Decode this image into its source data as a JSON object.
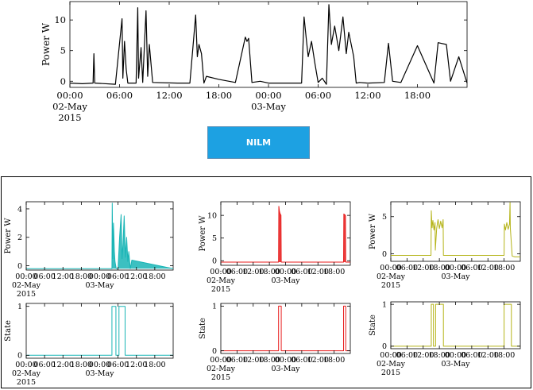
{
  "button": {
    "label": "NILM"
  },
  "chart_data": [
    {
      "id": "aggregate",
      "type": "line",
      "color": "#000000",
      "ylabel": "Power W",
      "ylim": [
        -1,
        13
      ],
      "yticks": [
        0,
        5,
        10
      ],
      "xlim": [
        0,
        48
      ],
      "xticks": [
        {
          "x": 0,
          "label": "00:00",
          "sub": [
            "02-May",
            "2015"
          ]
        },
        {
          "x": 6,
          "label": "06:00"
        },
        {
          "x": 12,
          "label": "12:00"
        },
        {
          "x": 18,
          "label": "18:00"
        },
        {
          "x": 24,
          "label": "00:00",
          "sub": [
            "03-May"
          ]
        },
        {
          "x": 30,
          "label": "06:00"
        },
        {
          "x": 36,
          "label": "12:00"
        },
        {
          "x": 42,
          "label": "18:00"
        }
      ],
      "x": [
        0,
        1.5,
        2.8,
        2.9,
        3.0,
        5.5,
        6.3,
        6.4,
        6.6,
        6.8,
        7.0,
        8.0,
        8.2,
        8.3,
        8.6,
        8.8,
        9.2,
        9.4,
        9.6,
        10.0,
        13.0,
        14.5,
        15.2,
        15.4,
        15.6,
        15.9,
        16.2,
        16.5,
        18.0,
        20.0,
        21.2,
        21.4,
        21.6,
        22.0,
        23.0,
        24.0,
        26.0,
        28.0,
        28.3,
        28.6,
        28.8,
        29.2,
        29.6,
        30.0,
        30.5,
        31.0,
        31.3,
        31.6,
        32.0,
        32.5,
        33.0,
        33.4,
        33.7,
        34.0,
        34.3,
        34.6,
        35.0,
        36.0,
        38.0,
        38.5,
        39.0,
        40.0,
        42.0,
        44.0,
        44.5,
        45.5,
        46.0,
        47.0,
        48.0
      ],
      "y": [
        -0.3,
        -0.4,
        -0.3,
        4.5,
        -0.3,
        -0.5,
        10.2,
        0.5,
        6.5,
        2.0,
        -0.3,
        -0.3,
        12.0,
        0.5,
        5.5,
        -0.2,
        11.5,
        0.8,
        6.0,
        -0.2,
        -0.3,
        -0.3,
        10.8,
        4.0,
        6.0,
        4.5,
        -0.3,
        0.8,
        0.3,
        -0.2,
        7.2,
        6.5,
        7.0,
        -0.2,
        0.0,
        -0.3,
        -0.3,
        -0.3,
        10.5,
        6.5,
        4.0,
        6.5,
        3.0,
        -0.2,
        0.5,
        -0.5,
        12.5,
        6.0,
        9.0,
        5.0,
        10.5,
        4.5,
        8.0,
        6.0,
        4.0,
        -0.3,
        -0.2,
        -0.3,
        -0.2,
        6.2,
        0.0,
        -0.2,
        5.8,
        -0.3,
        6.3,
        6.0,
        0.0,
        4.0,
        -0.3
      ]
    },
    {
      "id": "app1-power",
      "type": "area",
      "color": "#1ab5b6",
      "ylabel": "Power W",
      "ylim": [
        -0.3,
        4.5
      ],
      "yticks": [
        0,
        2,
        4
      ],
      "xlim": [
        0,
        48
      ],
      "xticks": [
        {
          "x": 0,
          "label": "00:00",
          "sub": [
            "02-May",
            "2015"
          ]
        },
        {
          "x": 6,
          "label": "06:00"
        },
        {
          "x": 12,
          "label": "12:00"
        },
        {
          "x": 18,
          "label": "18:00"
        },
        {
          "x": 24,
          "label": "00:00",
          "sub": [
            "03-May"
          ]
        },
        {
          "x": 30,
          "label": "06:00"
        },
        {
          "x": 36,
          "label": "12:00"
        },
        {
          "x": 42,
          "label": "18:00"
        }
      ],
      "x": [
        0,
        28.0,
        28.1,
        28.3,
        28.5,
        28.8,
        29.0,
        29.4,
        29.8,
        30.0,
        30.5,
        31.0,
        31.3,
        31.6,
        32.0,
        32.4,
        32.8,
        33.2,
        33.5,
        34.0,
        34.5,
        48
      ],
      "y": [
        -0.2,
        -0.2,
        4.4,
        0.5,
        3.0,
        1.0,
        0.3,
        -0.2,
        -0.2,
        -0.2,
        2.0,
        3.6,
        0.5,
        1.5,
        3.5,
        0.6,
        2.0,
        0.3,
        1.0,
        -0.2,
        0.4,
        -0.2
      ]
    },
    {
      "id": "app2-power",
      "type": "area",
      "color": "#e81e1e",
      "ylabel": "Power W",
      "ylim": [
        -1,
        13
      ],
      "yticks": [
        0,
        5,
        10
      ],
      "xlim": [
        0,
        48
      ],
      "xticks": [
        {
          "x": 0,
          "label": "00:00",
          "sub": [
            "02-May",
            "2015"
          ]
        },
        {
          "x": 6,
          "label": "06:00"
        },
        {
          "x": 12,
          "label": "12:00"
        },
        {
          "x": 18,
          "label": "18:00"
        },
        {
          "x": 24,
          "label": "00:00",
          "sub": [
            "03-May"
          ]
        },
        {
          "x": 30,
          "label": "06:00"
        },
        {
          "x": 36,
          "label": "12:00"
        },
        {
          "x": 42,
          "label": "18:00"
        }
      ],
      "x": [
        0,
        21.4,
        21.5,
        21.7,
        21.9,
        22.3,
        22.4,
        45.5,
        45.6,
        46.2,
        46.3,
        48
      ],
      "y": [
        -0.3,
        -0.3,
        12.0,
        11.0,
        10.5,
        10.0,
        -0.3,
        -0.3,
        10.3,
        10.0,
        -0.3,
        -0.3
      ]
    },
    {
      "id": "app3-power",
      "type": "line",
      "color": "#b5b419",
      "ylabel": "Power W",
      "ylim": [
        -1,
        7
      ],
      "yticks": [
        0,
        5
      ],
      "xlim": [
        0,
        48
      ],
      "xticks": [
        {
          "x": 0,
          "label": "00:00",
          "sub": [
            "02-May",
            "2015"
          ]
        },
        {
          "x": 6,
          "label": "06:00"
        },
        {
          "x": 12,
          "label": "12:00"
        },
        {
          "x": 18,
          "label": "18:00"
        },
        {
          "x": 24,
          "label": "00:00",
          "sub": [
            "03-May"
          ]
        },
        {
          "x": 30,
          "label": "06:00"
        },
        {
          "x": 36,
          "label": "12:00"
        },
        {
          "x": 42,
          "label": "18:00"
        }
      ],
      "x": [
        0,
        14.9,
        15.0,
        15.3,
        15.6,
        16.0,
        16.4,
        16.5,
        17.0,
        17.5,
        18.0,
        18.5,
        19.0,
        19.4,
        19.5,
        42.0,
        42.1,
        42.5,
        43.0,
        43.5,
        44.0,
        44.2,
        44.3,
        45.0,
        46.0,
        48
      ],
      "y": [
        -0.2,
        -0.2,
        5.8,
        3.5,
        4.5,
        3.2,
        4.2,
        0.5,
        3.4,
        4.6,
        3.4,
        4.4,
        3.5,
        4.6,
        -0.2,
        -0.2,
        4.0,
        3.2,
        4.2,
        3.3,
        4.0,
        6.9,
        3.5,
        -0.3,
        -0.4,
        -0.4
      ]
    },
    {
      "id": "app1-state",
      "type": "line",
      "color": "#1ab5b6",
      "ylabel": "State",
      "ylim": [
        -0.06,
        1.06
      ],
      "yticks": [
        0,
        1
      ],
      "xlim": [
        0,
        48
      ],
      "xticks": [
        {
          "x": 0,
          "label": "00:00",
          "sub": [
            "02-May",
            "2015"
          ]
        },
        {
          "x": 6,
          "label": "06:00"
        },
        {
          "x": 12,
          "label": "12:00"
        },
        {
          "x": 18,
          "label": "18:00"
        },
        {
          "x": 24,
          "label": "00:00",
          "sub": [
            "03-May"
          ]
        },
        {
          "x": 30,
          "label": "06:00"
        },
        {
          "x": 36,
          "label": "12:00"
        },
        {
          "x": 42,
          "label": "18:00"
        }
      ],
      "x": [
        0,
        28.0,
        28.0,
        29.3,
        29.3,
        30.3,
        30.3,
        32.3,
        32.3,
        48
      ],
      "y": [
        0,
        0,
        1,
        1,
        0,
        0,
        1,
        1,
        0,
        0
      ]
    },
    {
      "id": "app2-state",
      "type": "line",
      "color": "#e81e1e",
      "ylabel": "State",
      "ylim": [
        -0.06,
        1.06
      ],
      "yticks": [
        0,
        1
      ],
      "xlim": [
        0,
        48
      ],
      "xticks": [
        {
          "x": 0,
          "label": "00:00",
          "sub": [
            "02-May",
            "2015"
          ]
        },
        {
          "x": 6,
          "label": "06:00"
        },
        {
          "x": 12,
          "label": "12:00"
        },
        {
          "x": 18,
          "label": "18:00"
        },
        {
          "x": 24,
          "label": "00:00",
          "sub": [
            "03-May"
          ]
        },
        {
          "x": 30,
          "label": "06:00"
        },
        {
          "x": 36,
          "label": "12:00"
        },
        {
          "x": 42,
          "label": "18:00"
        }
      ],
      "x": [
        0,
        21.4,
        21.4,
        22.4,
        22.4,
        45.5,
        45.5,
        46.3,
        46.3,
        48
      ],
      "y": [
        0,
        0,
        1,
        1,
        0,
        0,
        1,
        1,
        0,
        0
      ]
    },
    {
      "id": "app3-state",
      "type": "line",
      "color": "#b5b419",
      "ylabel": "State",
      "ylim": [
        -0.06,
        1.06
      ],
      "yticks": [
        0,
        1
      ],
      "xlim": [
        0,
        48
      ],
      "xticks": [
        {
          "x": 0,
          "label": "00:00",
          "sub": [
            "02-May",
            "2015"
          ]
        },
        {
          "x": 6,
          "label": "06:00"
        },
        {
          "x": 12,
          "label": "12:00"
        },
        {
          "x": 18,
          "label": "18:00"
        },
        {
          "x": 24,
          "label": "00:00",
          "sub": [
            "03-May"
          ]
        },
        {
          "x": 30,
          "label": "06:00"
        },
        {
          "x": 36,
          "label": "12:00"
        },
        {
          "x": 42,
          "label": "18:00"
        }
      ],
      "x": [
        0,
        15.0,
        15.0,
        15.8,
        15.8,
        16.6,
        16.6,
        19.5,
        19.5,
        42.0,
        42.0,
        44.7,
        44.7,
        48
      ],
      "y": [
        0,
        0,
        1,
        1,
        0,
        0,
        1,
        1,
        0,
        0,
        1,
        1,
        0,
        0
      ]
    }
  ]
}
